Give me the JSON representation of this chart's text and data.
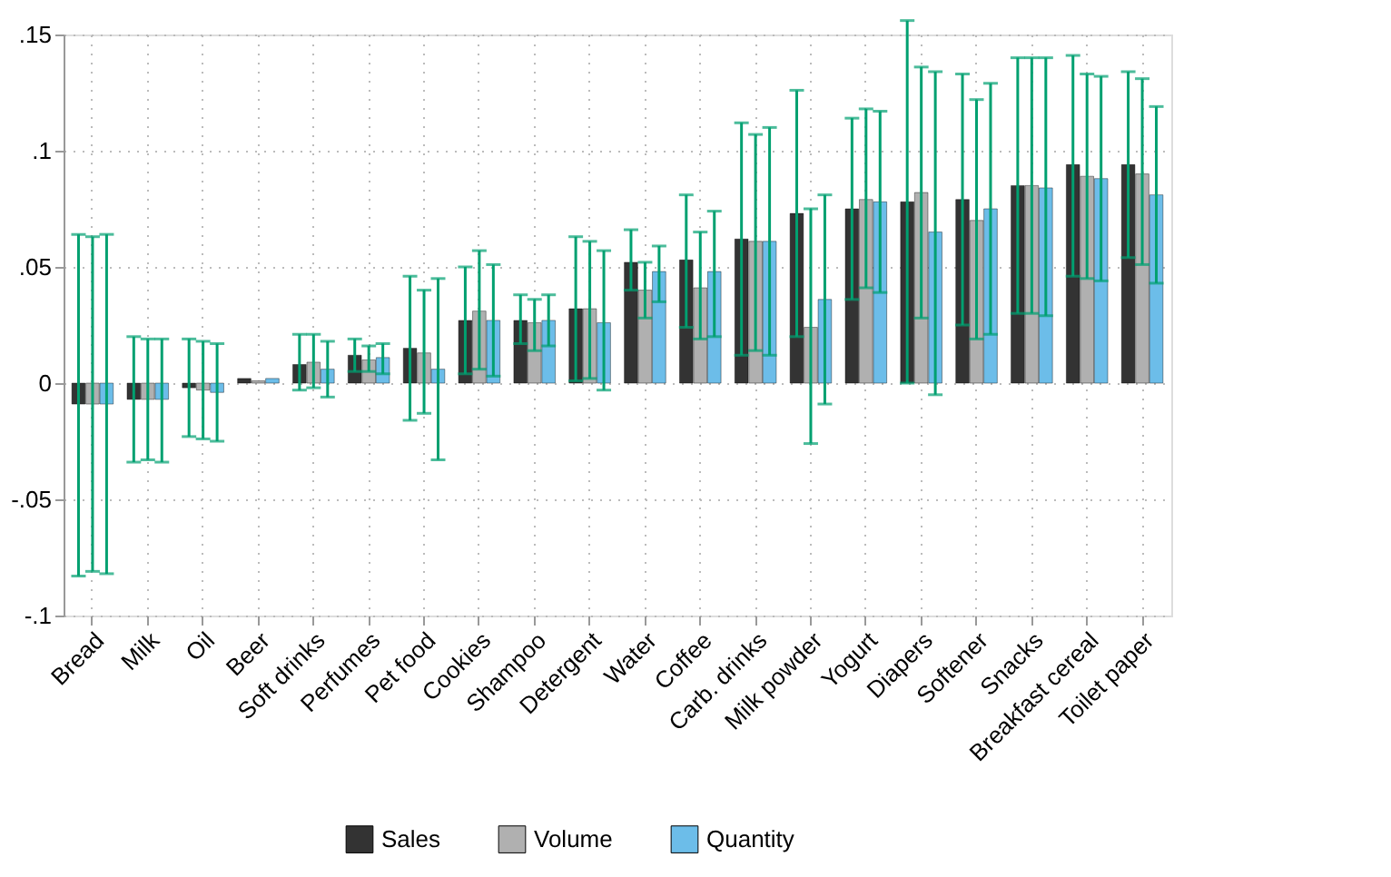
{
  "chart_data": {
    "type": "bar",
    "categories": [
      "Bread",
      "Milk",
      "Oil",
      "Beer",
      "Soft drinks",
      "Perfumes",
      "Pet food",
      "Cookies",
      "Shampoo",
      "Detergent",
      "Water",
      "Coffee",
      "Carb. drinks",
      "Milk powder",
      "Yogurt",
      "Diapers",
      "Softener",
      "Snacks",
      "Breakfast cereal",
      "Toilet paper"
    ],
    "series": [
      {
        "name": "Sales",
        "color": "#333333",
        "values": [
          -0.009,
          -0.007,
          -0.002,
          0.002,
          0.008,
          0.012,
          0.015,
          0.027,
          0.027,
          0.032,
          0.052,
          0.053,
          0.062,
          0.073,
          0.075,
          0.078,
          0.079,
          0.085,
          0.094,
          0.094
        ],
        "errors": [
          [
            -0.083,
            0.064
          ],
          [
            -0.034,
            0.02
          ],
          [
            -0.023,
            0.019
          ],
          null,
          [
            -0.003,
            0.021
          ],
          [
            0.005,
            0.019
          ],
          [
            -0.016,
            0.046
          ],
          [
            0.004,
            0.05
          ],
          [
            0.017,
            0.038
          ],
          [
            0.001,
            0.063
          ],
          [
            0.04,
            0.066
          ],
          [
            0.024,
            0.081
          ],
          [
            0.012,
            0.112
          ],
          [
            0.02,
            0.126
          ],
          [
            0.036,
            0.114
          ],
          [
            0.0,
            0.156
          ],
          [
            0.025,
            0.133
          ],
          [
            0.03,
            0.14
          ],
          [
            0.046,
            0.141
          ],
          [
            0.054,
            0.134
          ]
        ]
      },
      {
        "name": "Volume",
        "color": "#b0b0b0",
        "values": [
          -0.009,
          -0.007,
          -0.003,
          0.001,
          0.009,
          0.01,
          0.013,
          0.031,
          0.026,
          0.032,
          0.04,
          0.041,
          0.061,
          0.024,
          0.079,
          0.082,
          0.07,
          0.085,
          0.089,
          0.09
        ],
        "errors": [
          [
            -0.081,
            0.063
          ],
          [
            -0.033,
            0.019
          ],
          [
            -0.024,
            0.018
          ],
          null,
          [
            -0.002,
            0.021
          ],
          [
            0.005,
            0.016
          ],
          [
            -0.013,
            0.04
          ],
          [
            0.006,
            0.057
          ],
          [
            0.014,
            0.036
          ],
          [
            0.002,
            0.061
          ],
          [
            0.028,
            0.052
          ],
          [
            0.019,
            0.065
          ],
          [
            0.014,
            0.107
          ],
          [
            -0.026,
            0.075
          ],
          [
            0.041,
            0.118
          ],
          [
            0.028,
            0.136
          ],
          [
            0.019,
            0.122
          ],
          [
            0.03,
            0.14
          ],
          [
            0.045,
            0.133
          ],
          [
            0.051,
            0.131
          ]
        ]
      },
      {
        "name": "Quantity",
        "color": "#6cbde9",
        "values": [
          -0.009,
          -0.007,
          -0.004,
          0.002,
          0.006,
          0.011,
          0.006,
          0.027,
          0.027,
          0.026,
          0.048,
          0.048,
          0.061,
          0.036,
          0.078,
          0.065,
          0.075,
          0.084,
          0.088,
          0.081
        ],
        "errors": [
          [
            -0.082,
            0.064
          ],
          [
            -0.034,
            0.019
          ],
          [
            -0.025,
            0.017
          ],
          null,
          [
            -0.006,
            0.018
          ],
          [
            0.004,
            0.017
          ],
          [
            -0.033,
            0.045
          ],
          [
            0.003,
            0.051
          ],
          [
            0.016,
            0.038
          ],
          [
            -0.003,
            0.057
          ],
          [
            0.035,
            0.059
          ],
          [
            0.02,
            0.074
          ],
          [
            0.012,
            0.11
          ],
          [
            -0.009,
            0.081
          ],
          [
            0.039,
            0.117
          ],
          [
            -0.005,
            0.134
          ],
          [
            0.021,
            0.129
          ],
          [
            0.029,
            0.14
          ],
          [
            0.044,
            0.132
          ],
          [
            0.043,
            0.119
          ]
        ]
      }
    ],
    "ylim": [
      -0.1,
      0.15
    ],
    "yticks": [
      {
        "value": -0.1,
        "label": "-.1"
      },
      {
        "value": -0.05,
        "label": "-.05"
      },
      {
        "value": 0,
        "label": "0"
      },
      {
        "value": 0.05,
        "label": ".05"
      },
      {
        "value": 0.1,
        "label": ".1"
      },
      {
        "value": 0.15,
        "label": ".15"
      }
    ],
    "grid": true,
    "legend": "bottom"
  }
}
